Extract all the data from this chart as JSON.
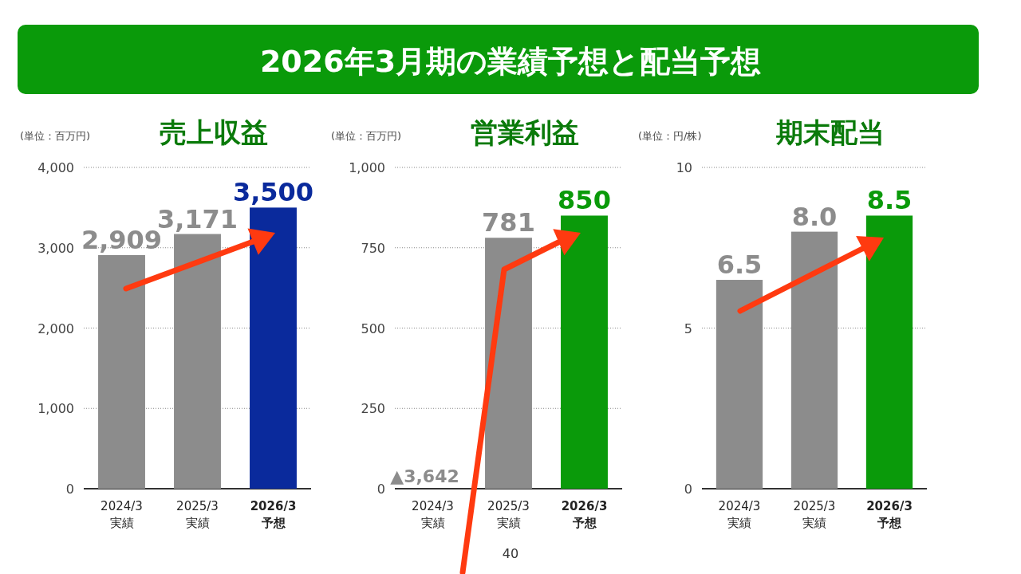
{
  "chart_data": [
    {
      "type": "bar",
      "title": "売上収益",
      "ylabel": "(単位：百万円)",
      "categories": [
        "2024/3\n実績",
        "2025/3\n実績",
        "**2026/3**\n**予想**"
      ],
      "values": [
        2909,
        3171,
        3500
      ],
      "colors": [
        "#8c8c8c",
        "#8c8c8c",
        "#0a2a9c"
      ],
      "value_labels": [
        "2,909",
        "3,171",
        "3,500"
      ],
      "ylim": [
        0,
        4000
      ],
      "yticks": [
        {
          "value": 0,
          "label": "0"
        },
        {
          "value": 1000,
          "label": "1,000"
        },
        {
          "value": 2000,
          "label": "2,000"
        },
        {
          "value": 3000,
          "label": "3,000"
        },
        {
          "value": 4000,
          "label": "4,000"
        }
      ],
      "grid": "y",
      "annotations": [
        "2026年3月期の業績予想と配当予想",
        "40"
      ]
    },
    {
      "type": "bar",
      "title": "営業利益",
      "ylabel": "(単位：百万円)",
      "categories": [
        "2024/3\n実績",
        "2025/3\n実績",
        "**2026/3**\n**予想**"
      ],
      "values": [
        null,
        781,
        850
      ],
      "colors": [
        "#8c8c8c",
        "#8c8c8c",
        "#0a9a0a"
      ],
      "value_labels": [
        "▲3,642",
        "781",
        "850"
      ],
      "ylim": [
        0,
        1000
      ],
      "yticks": [
        {
          "value": 0,
          "label": "0"
        },
        {
          "value": 250,
          "label": "250"
        },
        {
          "value": 500,
          "label": "500"
        },
        {
          "value": 750,
          "label": "750"
        },
        {
          "value": 1000,
          "label": "1,000"
        }
      ],
      "grid": "y"
    },
    {
      "type": "bar",
      "title": "期末配当",
      "ylabel": "(単位：円/株)",
      "categories": [
        "2024/3\n実績",
        "2025/3\n実績",
        "**2026/3**\n**予想**"
      ],
      "values": [
        6.5,
        8.0,
        8.5
      ],
      "colors": [
        "#8c8c8c",
        "#8c8c8c",
        "#0a9a0a"
      ],
      "value_labels": [
        "6.5",
        "8.0",
        "8.5"
      ],
      "ylim": [
        0,
        10
      ],
      "yticks": [
        0,
        5,
        10
      ],
      "grid": "y"
    }
  ]
}
